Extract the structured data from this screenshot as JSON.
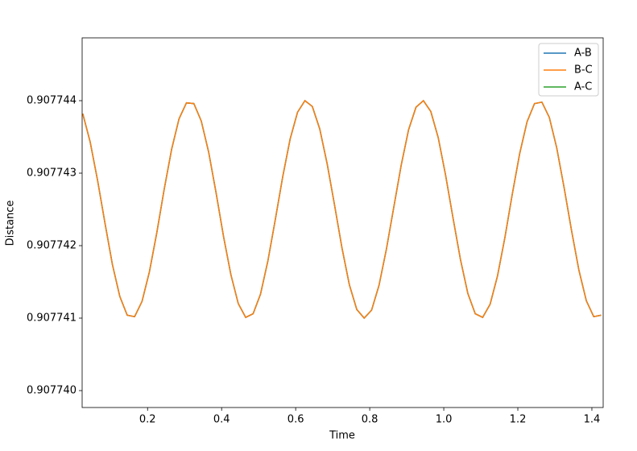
{
  "chart_data": {
    "type": "line",
    "xlabel": "Time",
    "ylabel": "Distance",
    "x": [
      0.025,
      0.045,
      0.065,
      0.085,
      0.105,
      0.125,
      0.145,
      0.165,
      0.185,
      0.205,
      0.225,
      0.245,
      0.265,
      0.285,
      0.305,
      0.325,
      0.345,
      0.365,
      0.385,
      0.405,
      0.425,
      0.445,
      0.465,
      0.485,
      0.505,
      0.525,
      0.545,
      0.565,
      0.585,
      0.605,
      0.625,
      0.645,
      0.665,
      0.685,
      0.705,
      0.725,
      0.745,
      0.765,
      0.785,
      0.805,
      0.825,
      0.845,
      0.865,
      0.885,
      0.905,
      0.925,
      0.945,
      0.965,
      0.985,
      1.005,
      1.025,
      1.045,
      1.065,
      1.085,
      1.105,
      1.125,
      1.145,
      1.165,
      1.185,
      1.205,
      1.225,
      1.245,
      1.265,
      1.285,
      1.305,
      1.325,
      1.345,
      1.365,
      1.385,
      1.405,
      1.425
    ],
    "series": [
      {
        "name": "A-B",
        "color": "#1f77b4",
        "values": [
          0.90774382,
          0.90774343,
          0.9077429,
          0.90774231,
          0.90774174,
          0.9077413,
          0.90774104,
          0.90774102,
          0.90774123,
          0.90774164,
          0.90774218,
          0.90774278,
          0.90774333,
          0.90774375,
          0.90774397,
          0.90774396,
          0.90774372,
          0.90774329,
          0.90774273,
          0.90774213,
          0.9077416,
          0.9077412,
          0.90774101,
          0.90774106,
          0.90774133,
          0.90774179,
          0.90774236,
          0.90774295,
          0.90774347,
          0.90774384,
          0.907744,
          0.90774392,
          0.90774361,
          0.90774313,
          0.90774256,
          0.90774197,
          0.90774146,
          0.90774112,
          0.907741,
          0.90774111,
          0.90774145,
          0.90774195,
          0.90774253,
          0.90774311,
          0.9077436,
          0.90774391,
          0.907744,
          0.90774385,
          0.90774349,
          0.90774297,
          0.90774238,
          0.90774181,
          0.90774134,
          0.90774106,
          0.90774101,
          0.90774119,
          0.90774158,
          0.90774211,
          0.90774271,
          0.90774327,
          0.90774371,
          0.90774396,
          0.90774398,
          0.90774377,
          0.90774335,
          0.9077428,
          0.90774221,
          0.90774166,
          0.90774124,
          0.90774102,
          0.90774104
        ]
      },
      {
        "name": "B-C",
        "color": "#ff7f0e",
        "values": [
          0.90774382,
          0.90774343,
          0.9077429,
          0.90774231,
          0.90774174,
          0.9077413,
          0.90774104,
          0.90774102,
          0.90774123,
          0.90774164,
          0.90774218,
          0.90774278,
          0.90774333,
          0.90774375,
          0.90774397,
          0.90774396,
          0.90774372,
          0.90774329,
          0.90774273,
          0.90774213,
          0.9077416,
          0.9077412,
          0.90774101,
          0.90774106,
          0.90774133,
          0.90774179,
          0.90774236,
          0.90774295,
          0.90774347,
          0.90774384,
          0.907744,
          0.90774392,
          0.90774361,
          0.90774313,
          0.90774256,
          0.90774197,
          0.90774146,
          0.90774112,
          0.907741,
          0.90774111,
          0.90774145,
          0.90774195,
          0.90774253,
          0.90774311,
          0.9077436,
          0.90774391,
          0.907744,
          0.90774385,
          0.90774349,
          0.90774297,
          0.90774238,
          0.90774181,
          0.90774134,
          0.90774106,
          0.90774101,
          0.90774119,
          0.90774158,
          0.90774211,
          0.90774271,
          0.90774327,
          0.90774371,
          0.90774396,
          0.90774398,
          0.90774377,
          0.90774335,
          0.9077428,
          0.90774221,
          0.90774166,
          0.90774124,
          0.90774102,
          0.90774104
        ]
      },
      {
        "name": "A-C",
        "color": "#2ca02c",
        "values": [
          0.90774382,
          0.90774343,
          0.9077429,
          0.90774231,
          0.90774174,
          0.9077413,
          0.90774104,
          0.90774102,
          0.90774123,
          0.90774164,
          0.90774218,
          0.90774278,
          0.90774333,
          0.90774375,
          0.90774397,
          0.90774396,
          0.90774372,
          0.90774329,
          0.90774273,
          0.90774213,
          0.9077416,
          0.9077412,
          0.90774101,
          0.90774106,
          0.90774133,
          0.90774179,
          0.90774236,
          0.90774295,
          0.90774347,
          0.90774384,
          0.907744,
          0.90774392,
          0.90774361,
          0.90774313,
          0.90774256,
          0.90774197,
          0.90774146,
          0.90774112,
          0.907741,
          0.90774111,
          0.90774145,
          0.90774195,
          0.90774253,
          0.90774311,
          0.9077436,
          0.90774391,
          0.907744,
          0.90774385,
          0.90774349,
          0.90774297,
          0.90774238,
          0.90774181,
          0.90774134,
          0.90774106,
          0.90774101,
          0.90774119,
          0.90774158,
          0.90774211,
          0.90774271,
          0.90774327,
          0.90774371,
          0.90774396,
          0.90774398,
          0.90774377,
          0.90774335,
          0.9077428,
          0.90774221,
          0.90774166,
          0.90774124,
          0.90774102,
          0.90774104
        ]
      }
    ],
    "xlim": [
      0.0233,
      1.4305
    ],
    "xticks": [
      0.2,
      0.4,
      0.6,
      0.8,
      {
        "value": 1.0,
        "label": "1.0"
      },
      1.2,
      1.4
    ],
    "ylim": [
      0.9077397667,
      0.9077448667
    ],
    "yticks": [
      {
        "value": 0.90774,
        "label": "0.907740"
      },
      0.907741,
      0.907742,
      0.907743,
      0.907744
    ],
    "grid": false,
    "legend": "upper right"
  }
}
